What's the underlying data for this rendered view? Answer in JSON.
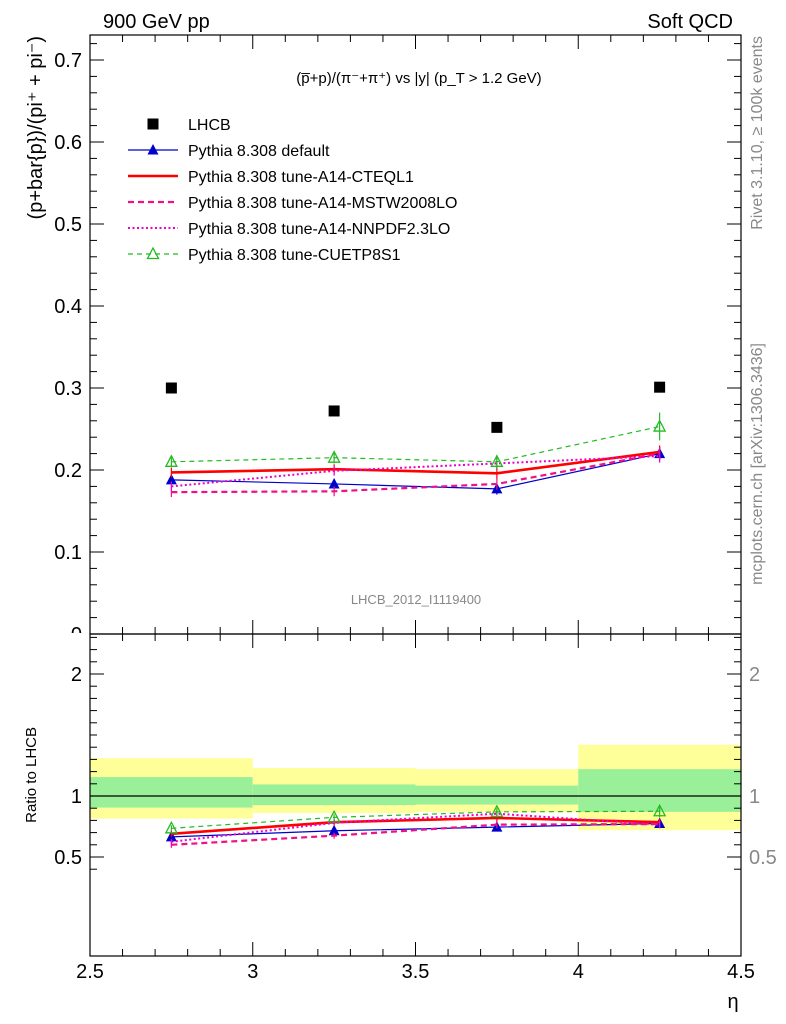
{
  "header": {
    "left": "900 GeV pp",
    "right": "Soft QCD"
  },
  "side_text": {
    "top": "Rivet 3.1.10, ≥ 100k events",
    "bottom": "mcplots.cern.ch [arXiv:1306.3436]"
  },
  "watermark": "LHCB_2012_I1119400",
  "chart_data": [
    {
      "type": "scatter",
      "panel": "main",
      "title": "(p̅+p)/(π⁻+π⁺) vs |y| (p_T > 1.2 GeV)",
      "ylabel": "(p+bar{p})/(pi⁺ + pi⁻)",
      "xlabel": "",
      "xlim": [
        2.5,
        4.5
      ],
      "ylim": [
        0,
        0.73
      ],
      "y_ticks": [
        0.1,
        0.2,
        0.3,
        0.4,
        0.5,
        0.6,
        0.7
      ],
      "y_tick_labels": [
        "0.1",
        "0.2",
        "0.3",
        "0.4",
        "0.5",
        "0.6",
        "0.7"
      ],
      "legend_position": "top-left",
      "x": [
        2.75,
        3.25,
        3.75,
        4.25
      ],
      "series": [
        {
          "name": "LHCB",
          "values": [
            0.3,
            0.272,
            0.252,
            0.301
          ],
          "color": "#000000",
          "marker": "square",
          "line": "none"
        },
        {
          "name": "Pythia 8.308 default",
          "values": [
            0.188,
            0.183,
            0.177,
            0.22
          ],
          "errors": [
            0.006,
            0.006,
            0.007,
            0.008
          ],
          "color": "#0000cc",
          "marker": "triangle",
          "line": "solid-thin"
        },
        {
          "name": "Pythia 8.308 tune-A14-CTEQL1",
          "values": [
            0.197,
            0.201,
            0.196,
            0.222
          ],
          "errors": [
            0.006,
            0.006,
            0.007,
            0.008
          ],
          "color": "#ff0000",
          "marker": "none",
          "line": "solid-thick"
        },
        {
          "name": "Pythia 8.308 tune-A14-MSTW2008LO",
          "values": [
            0.173,
            0.174,
            0.183,
            0.22
          ],
          "errors": [
            0.006,
            0.006,
            0.007,
            0.008
          ],
          "color": "#ee1188",
          "marker": "none",
          "line": "dashed"
        },
        {
          "name": "Pythia 8.308 tune-A14-NNPDF2.3LO",
          "values": [
            0.18,
            0.199,
            0.208,
            0.217
          ],
          "errors": [
            0.006,
            0.006,
            0.007,
            0.008
          ],
          "color": "#ee00cc",
          "marker": "none",
          "line": "dotted"
        },
        {
          "name": "Pythia 8.308 tune-CUETP8S1",
          "values": [
            0.21,
            0.215,
            0.21,
            0.253
          ],
          "errors": [
            0.006,
            0.007,
            0.008,
            0.017
          ],
          "color": "#22bb22",
          "marker": "open-triangle",
          "line": "dashed-thin"
        }
      ]
    },
    {
      "type": "line",
      "panel": "ratio",
      "ylabel": "Ratio to LHCB",
      "xlabel": "η",
      "xlim": [
        2.5,
        4.5
      ],
      "ylim": [
        0.35,
        2.4
      ],
      "y_ticks": [
        0.5,
        1,
        2
      ],
      "y_tick_labels": [
        "0.5",
        "1",
        "2"
      ],
      "x_ticks": [
        2.5,
        3,
        3.5,
        4,
        4.5
      ],
      "x_tick_labels": [
        "2.5",
        "3",
        "3.5",
        "4",
        "4.5"
      ],
      "reference_line": 1,
      "bands": [
        {
          "x_range": [
            2.5,
            3.0
          ],
          "inner": [
            0.905,
            1.155
          ],
          "outer": [
            0.815,
            1.31
          ]
        },
        {
          "x_range": [
            3.0,
            3.5
          ],
          "inner": [
            0.925,
            1.095
          ],
          "outer": [
            0.86,
            1.23
          ]
        },
        {
          "x_range": [
            3.5,
            4.0
          ],
          "inner": [
            0.93,
            1.085
          ],
          "outer": [
            0.87,
            1.22
          ]
        },
        {
          "x_range": [
            4.0,
            4.5
          ],
          "inner": [
            0.87,
            1.22
          ],
          "outer": [
            0.72,
            1.42
          ]
        }
      ],
      "band_colors": {
        "inner": "#99f099",
        "outer": "#ffff99"
      },
      "x": [
        2.75,
        3.25,
        3.75,
        4.25
      ],
      "series": [
        {
          "name": "Pythia 8.308 default",
          "values": [
            0.665,
            0.715,
            0.745,
            0.775
          ],
          "errors": [
            0.025,
            0.025,
            0.03,
            0.03
          ],
          "color": "#0000cc",
          "marker": "triangle",
          "line": "solid-thin"
        },
        {
          "name": "Pythia 8.308 tune-A14-CTEQL1",
          "values": [
            0.69,
            0.785,
            0.82,
            0.785
          ],
          "errors": [
            0.025,
            0.025,
            0.03,
            0.03
          ],
          "color": "#ff0000",
          "marker": "none",
          "line": "solid-thick"
        },
        {
          "name": "Pythia 8.308 tune-A14-MSTW2008LO",
          "values": [
            0.6,
            0.675,
            0.765,
            0.77
          ],
          "errors": [
            0.025,
            0.025,
            0.03,
            0.03
          ],
          "color": "#ee1188",
          "marker": "none",
          "line": "dashed"
        },
        {
          "name": "Pythia 8.308 tune-A14-NNPDF2.3LO",
          "values": [
            0.625,
            0.78,
            0.855,
            0.765
          ],
          "errors": [
            0.025,
            0.025,
            0.03,
            0.03
          ],
          "color": "#ee00cc",
          "marker": "none",
          "line": "dotted"
        },
        {
          "name": "Pythia 8.308 tune-CUETP8S1",
          "values": [
            0.735,
            0.825,
            0.87,
            0.875
          ],
          "errors": [
            0.025,
            0.025,
            0.03,
            0.05
          ],
          "color": "#22bb22",
          "marker": "open-triangle",
          "line": "dashed-thin"
        }
      ]
    }
  ]
}
